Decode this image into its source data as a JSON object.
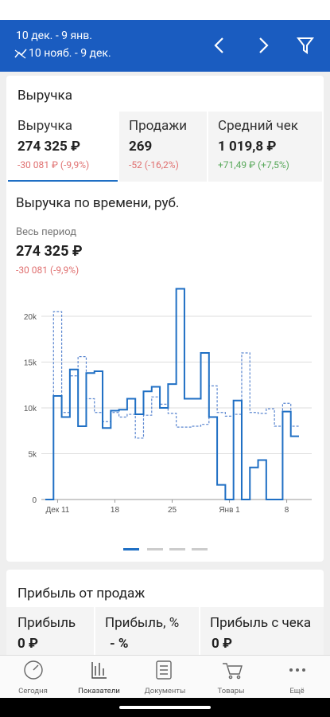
{
  "header": {
    "period": "10 дек. - 9 янв.",
    "compare_period": "10 нояб. - 9 дек."
  },
  "revenue_card": {
    "title": "Выручка",
    "tabs": [
      {
        "label": "Выручка",
        "value": "274 325 ₽",
        "change": "-30 081 ₽ (-9,9%)"
      },
      {
        "label": "Продажи",
        "value": "269",
        "change": "-52 (-16,2%)"
      },
      {
        "label": "Средний чек",
        "value": "1 019,8 ₽",
        "change": "+71,49 ₽ (+7,5%)"
      }
    ]
  },
  "chart_section": {
    "title": "Выручка по времени, руб.",
    "period_label": "Весь период",
    "total": "274 325 ₽",
    "change": "-30 081 (-9,9%)"
  },
  "chart_data": {
    "type": "line",
    "categories": [
      null,
      "Дек 11",
      null,
      null,
      null,
      null,
      null,
      null,
      "18",
      null,
      null,
      null,
      null,
      null,
      null,
      "25",
      null,
      null,
      null,
      null,
      null,
      null,
      "Янв 1",
      null,
      null,
      null,
      null,
      null,
      null,
      "8",
      null
    ],
    "series": [
      {
        "color": "#1f6fc4",
        "line_style": "solid",
        "values": [
          0,
          11300,
          9000,
          14200,
          8000,
          13800,
          14000,
          7800,
          9700,
          9800,
          11000,
          9300,
          11800,
          12300,
          10000,
          12600,
          23000,
          11000,
          11000,
          16000,
          9000,
          1600,
          0,
          10800,
          0,
          3500,
          4300,
          0,
          0,
          9600,
          6900
        ]
      },
      {
        "color": "#5a86d0",
        "line_style": "dashed",
        "values": [
          0,
          20500,
          9500,
          13500,
          15600,
          11000,
          9500,
          8500,
          9500,
          9000,
          9300,
          6700,
          9200,
          11200,
          10400,
          9400,
          7900,
          7900,
          8000,
          8200,
          12400,
          9500,
          9100,
          9300,
          16000,
          9500,
          9400,
          9900,
          8000,
          10500,
          8000
        ]
      }
    ],
    "ylim": [
      0,
      24000
    ],
    "yticks": [
      0,
      {
        "value": 5000,
        "label": "5k"
      },
      {
        "value": 10000,
        "label": "10k"
      },
      {
        "value": 15000,
        "label": "15k"
      },
      {
        "value": 20000,
        "label": "20k"
      }
    ],
    "grid": true
  },
  "profit_card": {
    "title": "Прибыль от продаж",
    "tabs": [
      {
        "label": "Прибыль",
        "value": "0 ₽"
      },
      {
        "label": "Прибыль, %",
        "value": "- %"
      },
      {
        "label": "Прибыль с чека",
        "value": "0 ₽"
      }
    ]
  },
  "nav": [
    "Сегодня",
    "Показатели",
    "Документы",
    "Товары",
    "Ещё"
  ]
}
